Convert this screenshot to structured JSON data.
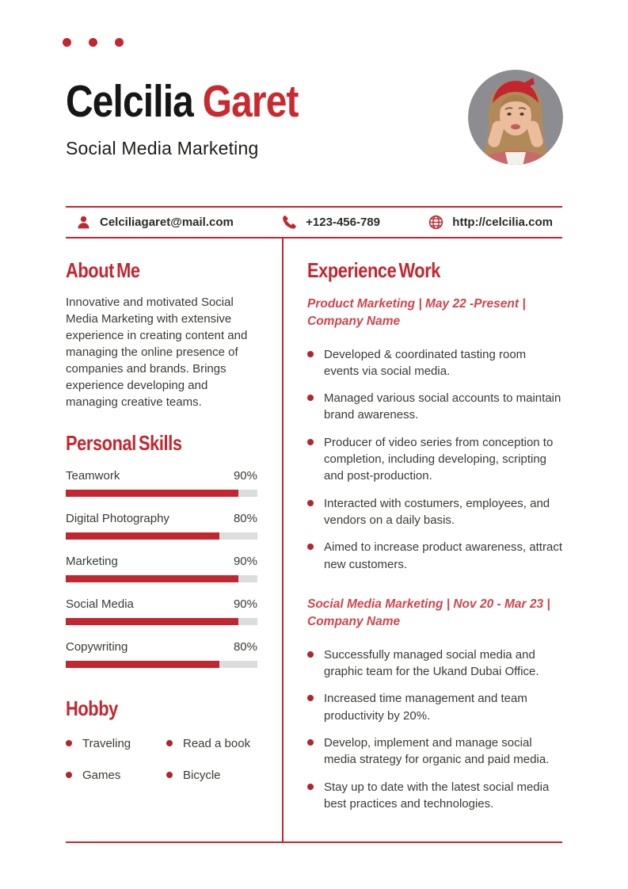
{
  "colors": {
    "accent": "#c3262e",
    "accent-light": "#d2444b",
    "name-red": "#c9292f",
    "text": "#3b3a36",
    "heading-black": "#161616",
    "track": "#dcdcdc",
    "photo-bg": "#8d8d91"
  },
  "header": {
    "name_first": "Celcilia",
    "name_last": "Garet",
    "subtitle": "Social Media Marketing"
  },
  "contact": {
    "email": "Celciliagaret@mail.com",
    "phone": "+123-456-789",
    "website": "http://celcilia.com"
  },
  "about": {
    "title": "About Me",
    "text": "Innovative and motivated Social Media Marketing with extensive experience in creating content and managing the online presence of companies and brands. Brings experience developing and managing creative teams."
  },
  "skills": {
    "title": "Personal Skills",
    "items": [
      {
        "label": "Teamwork",
        "percent": 90,
        "percent_label": "90%"
      },
      {
        "label": "Digital Photography",
        "percent": 80,
        "percent_label": "80%"
      },
      {
        "label": "Marketing",
        "percent": 90,
        "percent_label": "90%"
      },
      {
        "label": "Social Media",
        "percent": 90,
        "percent_label": "90%"
      },
      {
        "label": "Copywriting",
        "percent": 80,
        "percent_label": "80%"
      }
    ]
  },
  "hobby": {
    "title": "Hobby",
    "items": [
      "Traveling",
      "Read a book",
      "Games",
      "Bicycle"
    ]
  },
  "experience": {
    "title": "Experience Work",
    "jobs": [
      {
        "heading": "Product Marketing | May 22 -Present | Company Name",
        "bullets": [
          "Developed & coordinated tasting room events via social media.",
          "Managed various social accounts to maintain brand awareness.",
          "Producer of video series from conception to completion, including developing, scripting and post-production.",
          "Interacted with costumers, employees, and vendors on a daily basis.",
          "Aimed to increase product awareness, attract new customers."
        ]
      },
      {
        "heading": "Social Media Marketing | Nov 20 - Mar 23 | Company Name",
        "bullets": [
          "Successfully managed social media and graphic team for the Ukand Dubai Office.",
          "Increased time management and team productivity by 20%.",
          "Develop, implement and manage social media strategy for organic and paid media.",
          "Stay up to date with the latest social media best practices and technologies."
        ]
      }
    ]
  }
}
